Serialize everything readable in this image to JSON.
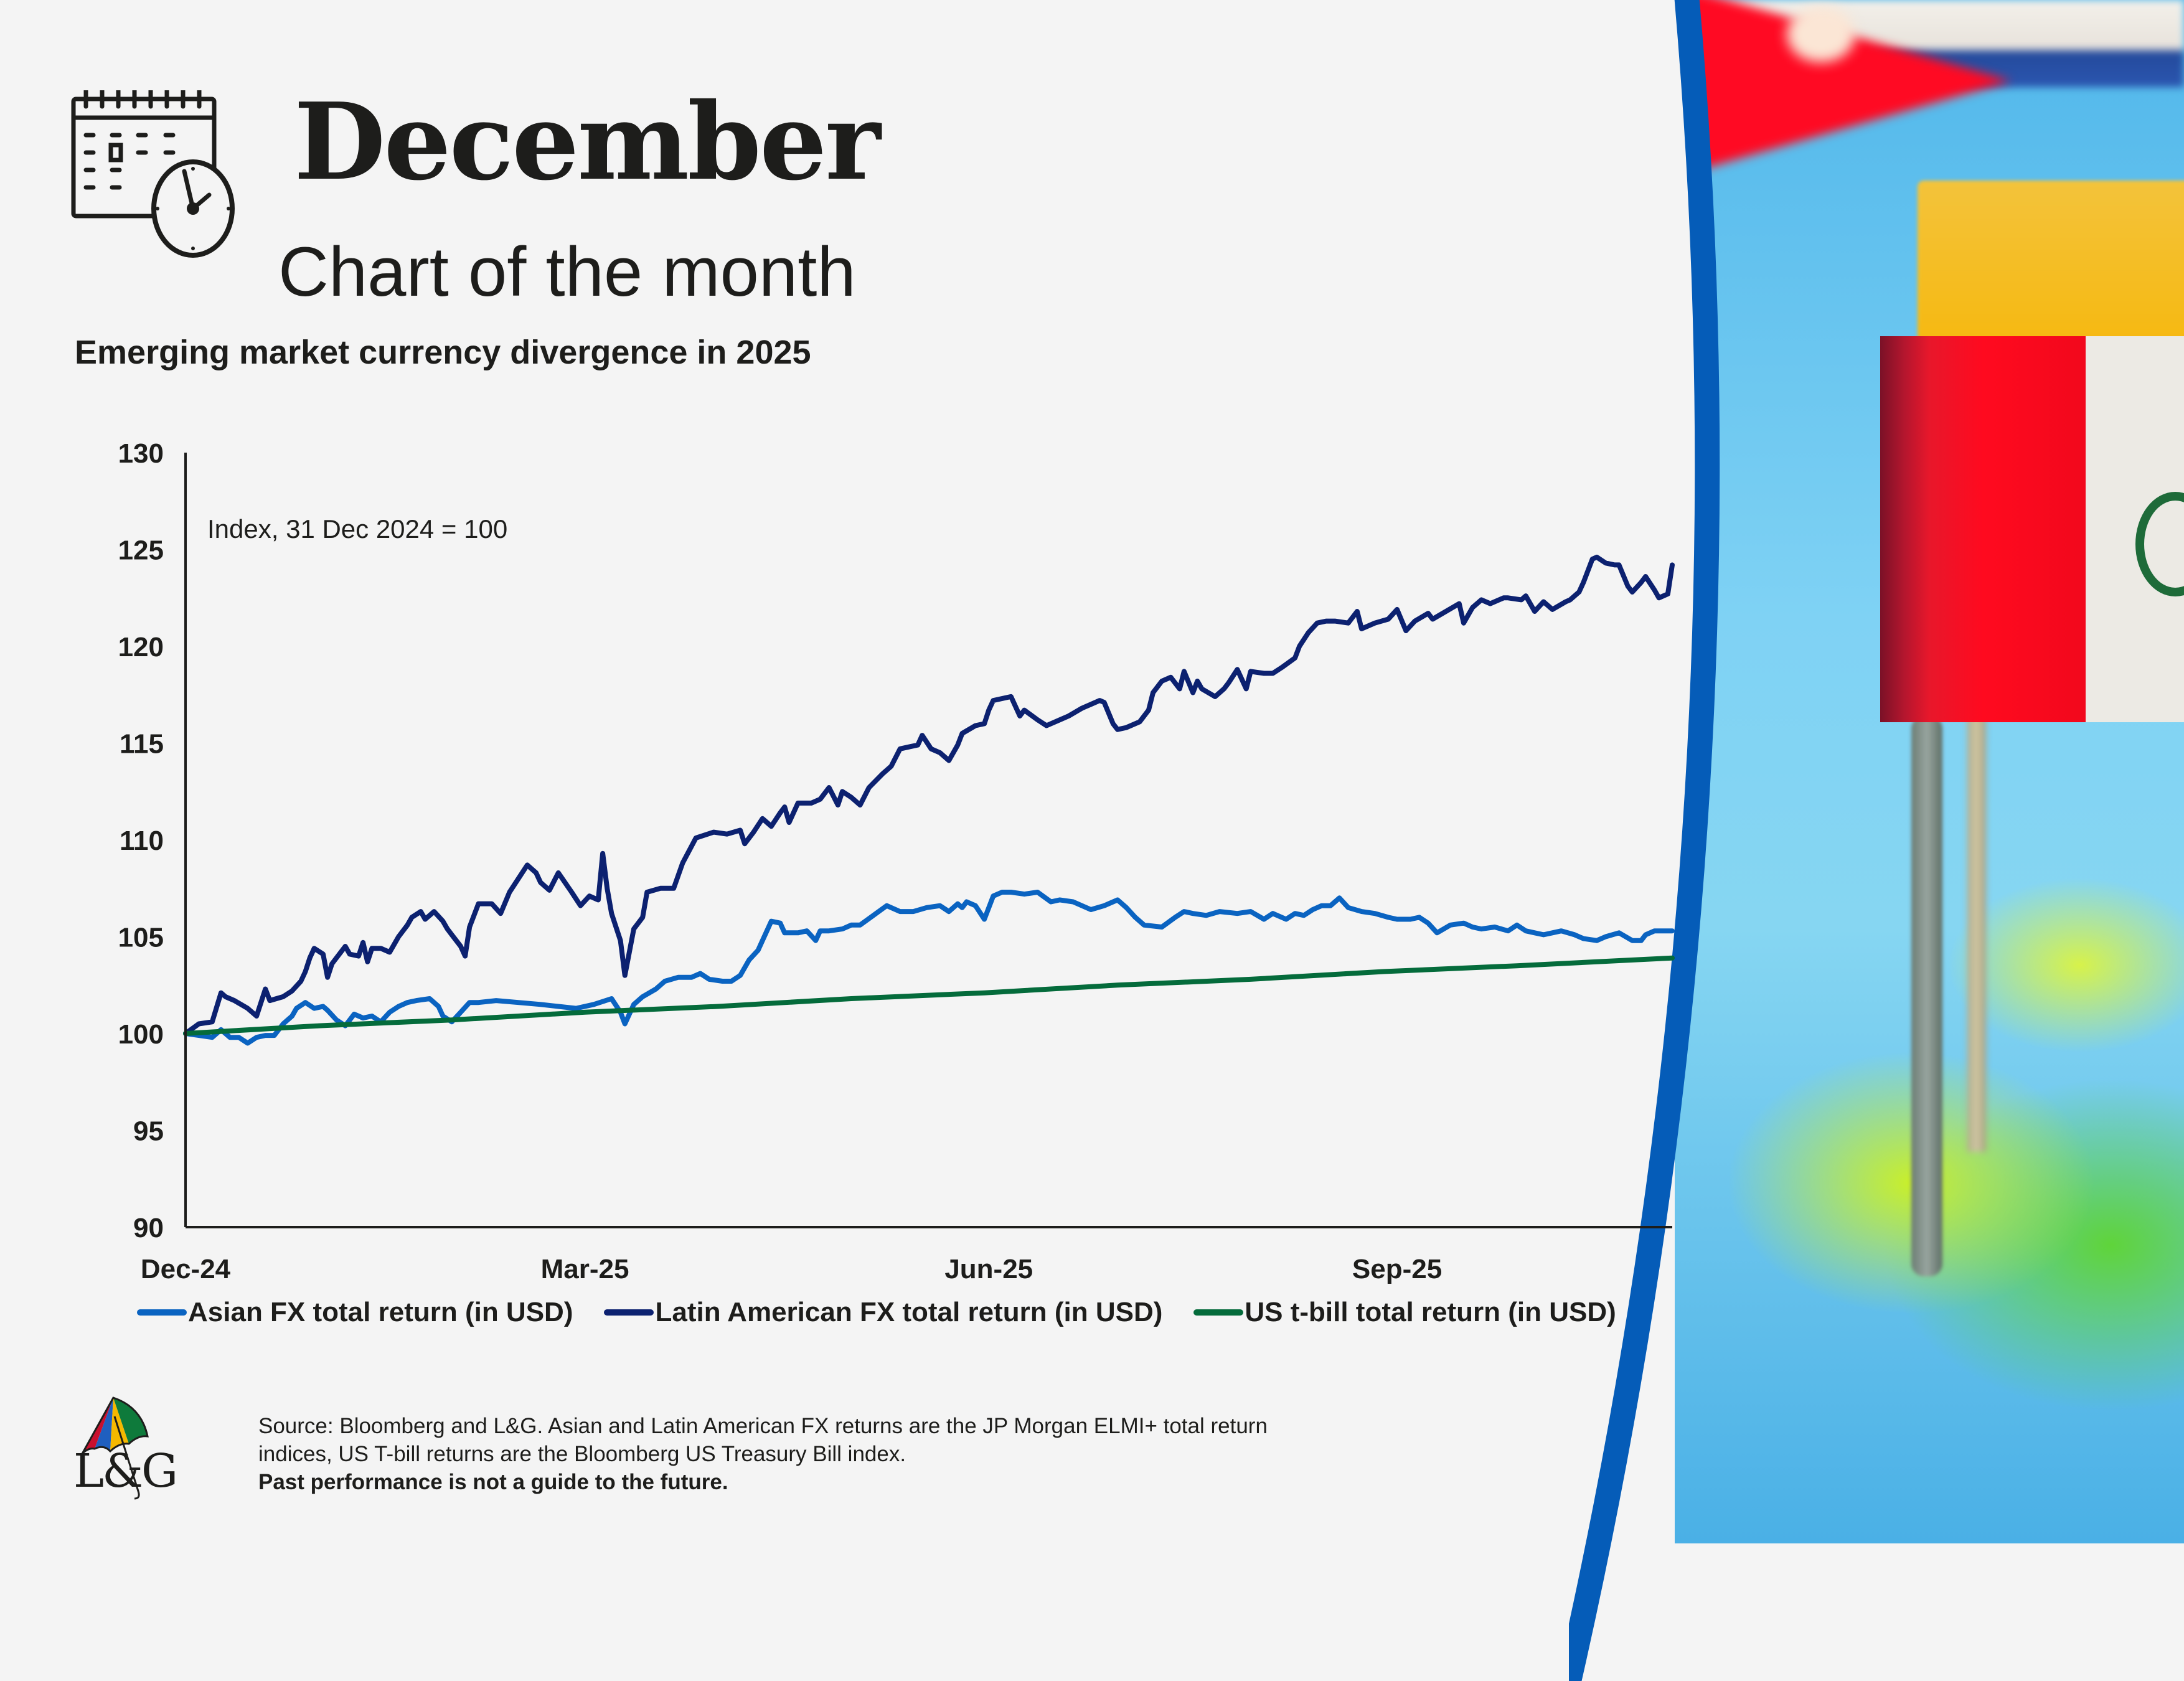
{
  "header": {
    "month": "December",
    "subtitle": "Chart of the month",
    "calendar_icon": "calendar-clock-icon"
  },
  "chart_title": "Emerging market currency divergence in 2025",
  "footer": {
    "source_line1": "Source: Bloomberg and L&G. Asian and Latin American FX returns are the JP Morgan ELMI+ total return",
    "source_line2": "indices, US T-bill returns are the Bloomberg US Treasury Bill index.",
    "disclaimer": "Past performance is not a guide to the future.",
    "logo_text": "L&G",
    "logo_icon": "umbrella-icon"
  },
  "colors": {
    "asian": "#0a63c1",
    "latam": "#0c2170",
    "tbill": "#046b3b",
    "arc": "#055cb8",
    "background": "#f4f4f4"
  },
  "chart_data": {
    "type": "line",
    "title": "Emerging market currency divergence in 2025",
    "annotation": "Index, 31 Dec 2024 = 100",
    "xlabel": "",
    "ylabel": "",
    "x_unit": "days since 31 Dec 2024",
    "xlim": [
      0,
      335
    ],
    "ylim": [
      90,
      130
    ],
    "yticks": [
      90,
      95,
      100,
      105,
      110,
      115,
      120,
      125,
      130
    ],
    "xticks": [
      {
        "x": 0,
        "label": "Dec-24"
      },
      {
        "x": 90,
        "label": "Mar-25"
      },
      {
        "x": 181,
        "label": "Jun-25"
      },
      {
        "x": 273,
        "label": "Sep-25"
      }
    ],
    "grid": false,
    "legend": "bottom",
    "series": [
      {
        "name": "Asian FX total return (in USD)",
        "key": "asian",
        "x": [
          0,
          3,
          6,
          8,
          10,
          12,
          14,
          16,
          18,
          20,
          22,
          24,
          25,
          27,
          29,
          31,
          32,
          34,
          36,
          38,
          40,
          42,
          44,
          46,
          48,
          50,
          52,
          55,
          57,
          58,
          60,
          62,
          64,
          66,
          70,
          75,
          80,
          84,
          88,
          92,
          96,
          98,
          99,
          101,
          103,
          106,
          108,
          111,
          114,
          116,
          118,
          121,
          123,
          125,
          127,
          129,
          130,
          132,
          134,
          135,
          138,
          140,
          142,
          143,
          145,
          148,
          150,
          152,
          155,
          158,
          161,
          164,
          167,
          170,
          172,
          174,
          175,
          176,
          178,
          180,
          182,
          184,
          186,
          189,
          192,
          195,
          197,
          200,
          204,
          207,
          210,
          212,
          214,
          216,
          220,
          223,
          225,
          227,
          230,
          233,
          237,
          240,
          243,
          245,
          248,
          250,
          252,
          254,
          256,
          258,
          260,
          262,
          265,
          268,
          271,
          273,
          276,
          278,
          280,
          282,
          285,
          288,
          290,
          292,
          295,
          298,
          300,
          302,
          304,
          306,
          308,
          310,
          313,
          315,
          318,
          320,
          323,
          326,
          328,
          329,
          331,
          333,
          335
        ],
        "values": [
          100.0,
          99.9,
          99.8,
          100.2,
          99.8,
          99.8,
          99.5,
          99.8,
          99.9,
          99.9,
          100.5,
          100.9,
          101.3,
          101.6,
          101.3,
          101.4,
          101.2,
          100.7,
          100.4,
          101.0,
          100.8,
          100.9,
          100.6,
          101.1,
          101.4,
          101.6,
          101.7,
          101.8,
          101.4,
          100.9,
          100.6,
          101.1,
          101.6,
          101.6,
          101.7,
          101.6,
          101.5,
          101.4,
          101.3,
          101.5,
          101.8,
          101.1,
          100.5,
          101.5,
          101.9,
          102.3,
          102.7,
          102.9,
          102.9,
          103.1,
          102.8,
          102.7,
          102.7,
          103.0,
          103.8,
          104.3,
          104.8,
          105.8,
          105.7,
          105.2,
          105.2,
          105.3,
          104.8,
          105.3,
          105.3,
          105.4,
          105.6,
          105.6,
          106.1,
          106.6,
          106.3,
          106.3,
          106.5,
          106.6,
          106.3,
          106.7,
          106.5,
          106.8,
          106.6,
          105.9,
          107.1,
          107.3,
          107.3,
          107.2,
          107.3,
          106.8,
          106.9,
          106.8,
          106.4,
          106.6,
          106.9,
          106.5,
          106.0,
          105.6,
          105.5,
          106.0,
          106.3,
          106.2,
          106.1,
          106.3,
          106.2,
          106.3,
          105.9,
          106.2,
          105.9,
          106.2,
          106.1,
          106.4,
          106.6,
          106.6,
          107.0,
          106.5,
          106.3,
          106.2,
          106.0,
          105.9,
          105.9,
          106.0,
          105.7,
          105.2,
          105.6,
          105.7,
          105.5,
          105.4,
          105.5,
          105.3,
          105.6,
          105.3,
          105.2,
          105.1,
          105.2,
          105.3,
          105.1,
          104.9,
          104.8,
          105.0,
          105.2,
          104.8,
          104.8,
          105.1,
          105.3,
          105.3,
          105.3
        ]
      },
      {
        "name": "Latin American FX total return (in USD)",
        "key": "latam",
        "x": [
          0,
          3,
          6,
          8,
          9,
          11,
          14,
          16,
          18,
          19,
          22,
          24,
          26,
          27,
          28,
          29,
          31,
          32,
          33,
          36,
          37,
          39,
          40,
          41,
          42,
          44,
          46,
          48,
          50,
          51,
          53,
          54,
          55,
          56,
          58,
          59,
          60,
          62,
          63,
          64,
          66,
          69,
          71,
          73,
          77,
          79,
          80,
          82,
          84,
          87,
          89,
          91,
          93,
          94,
          95,
          96,
          98,
          99,
          101,
          103,
          104,
          107,
          110,
          112,
          115,
          119,
          122,
          125,
          126,
          128,
          130,
          132,
          134,
          135,
          136,
          138,
          141,
          143,
          145,
          147,
          148,
          150,
          152,
          154,
          157,
          159,
          161,
          163,
          165,
          166,
          168,
          170,
          172,
          174,
          175,
          178,
          180,
          181,
          182,
          184,
          186,
          188,
          189,
          192,
          194,
          197,
          199,
          202,
          204,
          206,
          207,
          209,
          210,
          212,
          215,
          217,
          218,
          220,
          222,
          224,
          225,
          227,
          228,
          229,
          232,
          234,
          235,
          237,
          239,
          240,
          243,
          245,
          247,
          250,
          251,
          253,
          255,
          257,
          259,
          262,
          264,
          265,
          268,
          271,
          273,
          275,
          277,
          280,
          281,
          284,
          287,
          288,
          290,
          292,
          294,
          297,
          298,
          301,
          302,
          304,
          306,
          308,
          311,
          312,
          314,
          315,
          317,
          318,
          320,
          322,
          323,
          325,
          326,
          328,
          329,
          331,
          332,
          334,
          335
        ],
        "values": [
          100.0,
          100.5,
          100.6,
          102.1,
          101.9,
          101.7,
          101.3,
          100.9,
          102.3,
          101.7,
          101.9,
          102.2,
          102.7,
          103.2,
          103.9,
          104.4,
          104.1,
          102.9,
          103.6,
          104.5,
          104.1,
          104.0,
          104.7,
          103.7,
          104.4,
          104.4,
          104.2,
          105.0,
          105.6,
          106.0,
          106.3,
          105.9,
          106.1,
          106.3,
          105.8,
          105.4,
          105.1,
          104.5,
          104.0,
          105.5,
          106.7,
          106.7,
          106.2,
          107.3,
          108.7,
          108.3,
          107.8,
          107.4,
          108.3,
          107.3,
          106.6,
          107.1,
          106.9,
          109.3,
          107.5,
          106.2,
          104.8,
          103.0,
          105.4,
          106.0,
          107.3,
          107.5,
          107.5,
          108.8,
          110.1,
          110.4,
          110.3,
          110.5,
          109.8,
          110.4,
          111.1,
          110.7,
          111.4,
          111.7,
          110.9,
          111.9,
          111.9,
          112.1,
          112.7,
          111.8,
          112.5,
          112.2,
          111.8,
          112.7,
          113.4,
          113.8,
          114.7,
          114.8,
          114.9,
          115.4,
          114.7,
          114.5,
          114.1,
          114.9,
          115.5,
          115.9,
          116.0,
          116.7,
          117.2,
          117.3,
          117.4,
          116.4,
          116.7,
          116.2,
          115.9,
          116.2,
          116.4,
          116.8,
          117.0,
          117.2,
          117.1,
          116.0,
          115.7,
          115.8,
          116.1,
          116.7,
          117.6,
          118.2,
          118.4,
          117.8,
          118.7,
          117.6,
          118.2,
          117.8,
          117.4,
          117.8,
          118.1,
          118.8,
          117.8,
          118.7,
          118.6,
          118.6,
          118.9,
          119.4,
          120.0,
          120.7,
          121.2,
          121.3,
          121.3,
          121.2,
          121.8,
          120.9,
          121.2,
          121.4,
          121.9,
          120.8,
          121.3,
          121.7,
          121.4,
          121.8,
          122.2,
          121.2,
          122.0,
          122.4,
          122.2,
          122.5,
          122.5,
          122.4,
          122.6,
          121.8,
          122.3,
          121.9,
          122.3,
          122.4,
          122.8,
          123.3,
          124.5,
          124.6,
          124.3,
          124.2,
          124.2,
          123.1,
          122.8,
          123.3,
          123.6,
          122.9,
          122.5,
          122.7,
          124.2
        ]
      },
      {
        "name": "US t-bill total return (in USD)",
        "key": "tbill",
        "x": [
          0,
          30,
          60,
          90,
          120,
          150,
          180,
          210,
          240,
          270,
          300,
          335
        ],
        "values": [
          100.0,
          100.4,
          100.7,
          101.1,
          101.4,
          101.8,
          102.1,
          102.5,
          102.8,
          103.2,
          103.5,
          103.9
        ]
      }
    ]
  }
}
